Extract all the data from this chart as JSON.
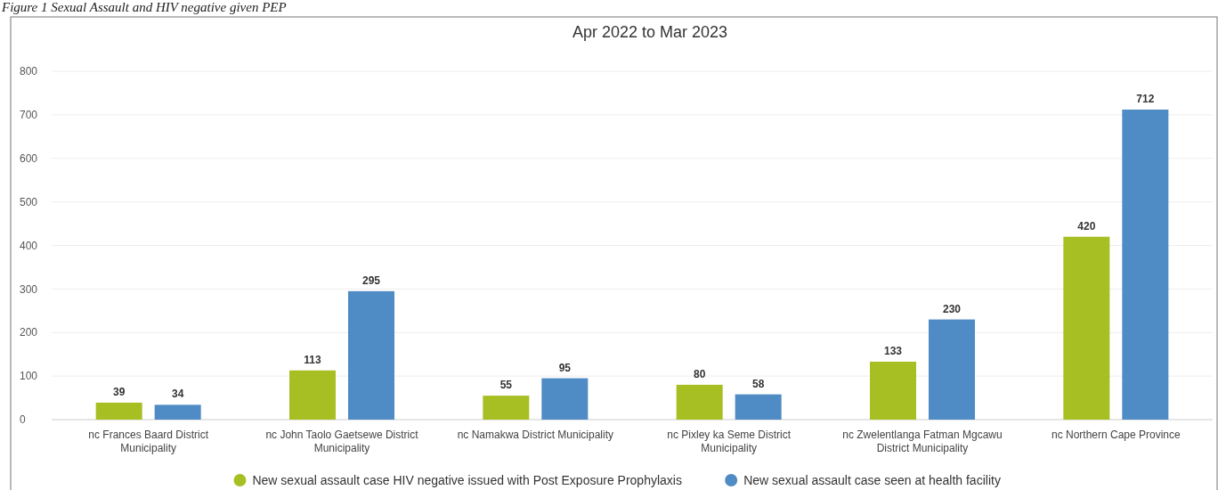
{
  "chart_data": {
    "type": "bar",
    "title": "Apr 2022 to Mar 2023",
    "annotations": [
      "Figure 1 Sexual Assault and HIV negative given PEP"
    ],
    "categories": [
      "nc Frances Baard District Municipality",
      "nc John Taolo Gaetsewe District Municipality",
      "nc Namakwa District Municipality",
      "nc Pixley ka Seme District Municipality",
      "nc Zwelentlanga Fatman Mgcawu District Municipality",
      "nc Northern Cape Province"
    ],
    "series": [
      {
        "name": "New sexual assault case HIV negative issued with Post Exposure Prophylaxis",
        "color": "#a8bf23",
        "values": [
          39,
          113,
          55,
          80,
          133,
          420
        ]
      },
      {
        "name": "New sexual assault case seen at health facility",
        "color": "#4f8bc4",
        "values": [
          34,
          295,
          95,
          58,
          230,
          712
        ]
      }
    ],
    "ylim": [
      0,
      800
    ],
    "yticks": [
      0,
      100,
      200,
      300,
      400,
      500,
      600,
      700,
      800
    ],
    "grid": "y",
    "legend": "bottom",
    "data_labels": true
  }
}
